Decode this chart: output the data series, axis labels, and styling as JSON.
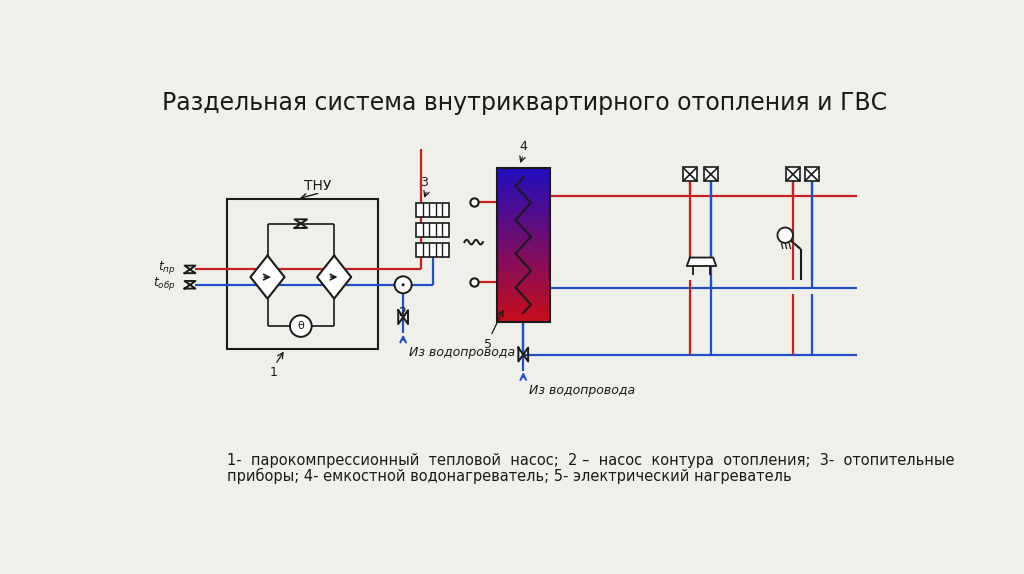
{
  "title": "Раздельная система внутриквартирного отопления и ГВС",
  "title_fontsize": 17,
  "caption_line1": "1-  парокомпрессионный  тепловой  насос;  2 –  насос  контура  отопления;  3-  отопительные",
  "caption_line2": "приборы; 4- емкостной водонагреватель; 5- электрический нагреватель",
  "caption_fontsize": 10.5,
  "bg_color": "#f0f0eb",
  "rc": "#c82020",
  "bc": "#2050c8",
  "bk": "#1a1a1a",
  "lw": 1.6
}
